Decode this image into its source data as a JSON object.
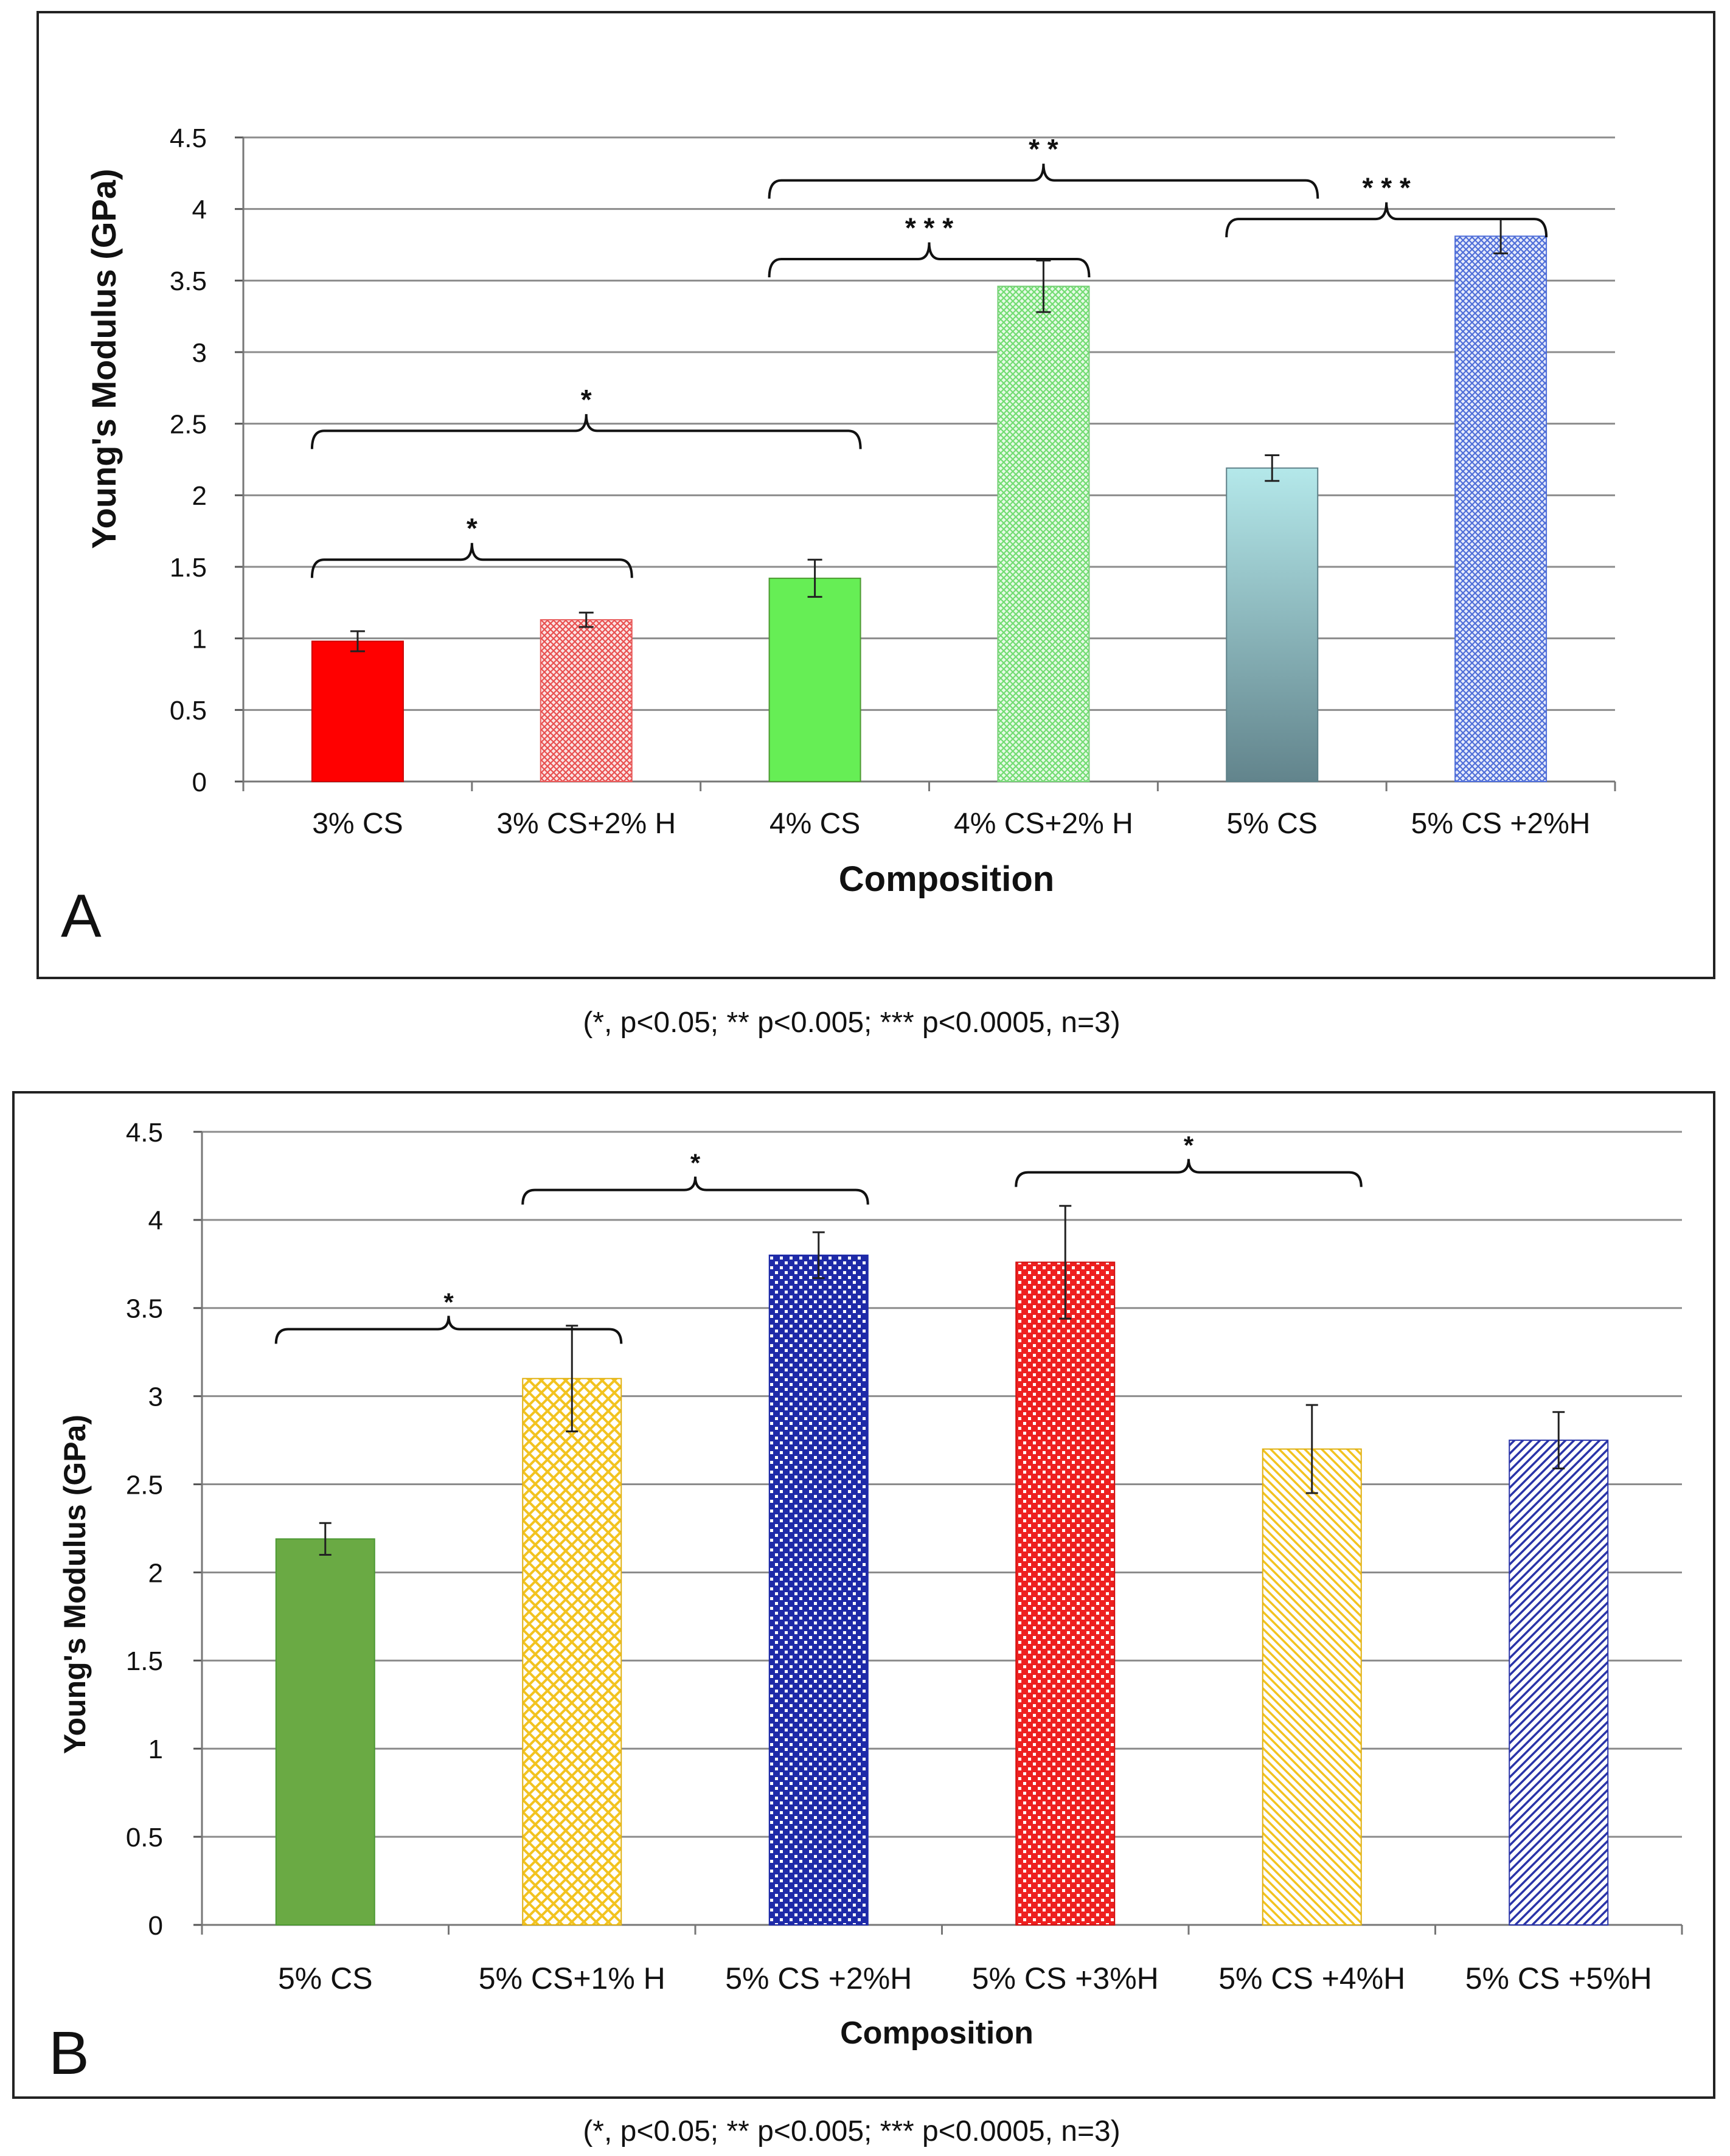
{
  "caption_a": "(*, p<0.05; ** p<0.005; *** p<0.0005, n=3)",
  "caption_b": "(*, p<0.05; ** p<0.005; *** p<0.0005, n=3)",
  "chart_data": [
    {
      "type": "bar",
      "panel_label": "A",
      "title": "",
      "xlabel": "Composition",
      "ylabel": "Young's Modulus (GPa)",
      "ylim": [
        0,
        4.5
      ],
      "yticks": [
        0,
        0.5,
        1,
        1.5,
        2,
        2.5,
        3,
        3.5,
        4,
        4.5
      ],
      "ytick_labels": [
        "0",
        "0.5",
        "1",
        "1.5",
        "2",
        "2.5",
        "3",
        "3.5",
        "4",
        "4.5"
      ],
      "grid": true,
      "categories": [
        "3% CS",
        "3% CS+2% H",
        "4% CS",
        "4% CS+2% H",
        "5% CS",
        "5% CS +2%H"
      ],
      "values": [
        0.98,
        1.13,
        1.42,
        3.46,
        2.19,
        3.81
      ],
      "errors": [
        0.07,
        0.05,
        0.13,
        0.18,
        0.09,
        0.12
      ],
      "fills": [
        "solid-red",
        "hatch-lightred",
        "solid-green",
        "hatch-lightgreen",
        "gradient-teal",
        "hatch-blue"
      ],
      "colors": {
        "solid-red": "#ff0000",
        "hatch-lightred": "#e85a5a",
        "solid-green": "#66ee55",
        "hatch-lightgreen": "#77e077",
        "gradient-teal-top": "#b2e6e8",
        "gradient-teal-bottom": "#66868e",
        "hatch-blue": "#5577dd"
      },
      "significance": [
        {
          "from": 0,
          "to": 1,
          "label": "*",
          "y": 1.55
        },
        {
          "from": 0,
          "to": 2,
          "label": "*",
          "y": 2.45
        },
        {
          "from": 2,
          "to": 3,
          "label": "* * *",
          "y": 3.65
        },
        {
          "from": 2,
          "to": 4,
          "label": "* *",
          "y": 4.2
        },
        {
          "from": 4,
          "to": 5,
          "label": "* * *",
          "y": 3.93
        }
      ]
    },
    {
      "type": "bar",
      "panel_label": "B",
      "title": "",
      "xlabel": "Composition",
      "ylabel": "Young's Modulus (GPa)",
      "ylim": [
        0,
        4.5
      ],
      "yticks": [
        0,
        0.5,
        1,
        1.5,
        2,
        2.5,
        3,
        3.5,
        4,
        4.5
      ],
      "ytick_labels": [
        "0",
        "0.5",
        "1",
        "1.5",
        "2",
        "2.5",
        "3",
        "3.5",
        "4",
        "4.5"
      ],
      "grid": true,
      "categories": [
        "5% CS",
        "5% CS+1% H",
        "5% CS +2%H",
        "5% CS +3%H",
        "5% CS +4%H",
        "5% CS +5%H"
      ],
      "values": [
        2.19,
        3.1,
        3.8,
        3.76,
        2.7,
        2.75
      ],
      "errors": [
        0.09,
        0.3,
        0.13,
        0.32,
        0.25,
        0.16
      ],
      "fills": [
        "solid-green",
        "hatch-yellow",
        "hatch-navy",
        "hatch-red",
        "stripe-yellow",
        "stripe-navy"
      ],
      "colors": {
        "solid-green": "#6aaa44",
        "hatch-yellow": "#f2c320",
        "hatch-navy": "#1e2aa8",
        "hatch-red": "#ee2020",
        "stripe-yellow": "#f2c320",
        "stripe-navy": "#2a34a8"
      },
      "significance": [
        {
          "from": 0,
          "to": 1,
          "label": "*",
          "y": 3.38
        },
        {
          "from": 1,
          "to": 2,
          "label": "*",
          "y": 4.17
        },
        {
          "from": 3,
          "to": 4,
          "label": "*",
          "y": 4.27
        }
      ]
    }
  ]
}
